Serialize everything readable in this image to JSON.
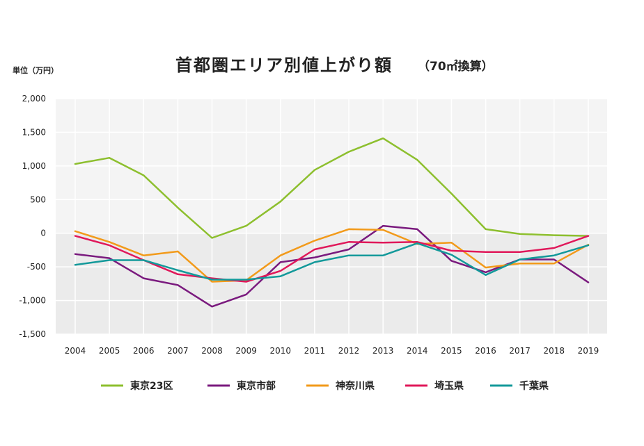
{
  "chart_data": {
    "type": "line",
    "title": "首都圏エリア別値上がり額",
    "subtitle": "（70㎡換算）",
    "unit_label": "単位（万円）",
    "xlabel": "",
    "ylabel": "",
    "ylim": [
      -1500,
      2000
    ],
    "y_ticks": [
      2000,
      1500,
      1000,
      500,
      0,
      -500,
      -1000,
      -1500
    ],
    "y_tick_labels": [
      "2,000",
      "1,500",
      "1,000",
      "500",
      "0",
      "-500",
      "-1,000",
      "-1,500"
    ],
    "categories": [
      "2004",
      "2005",
      "2006",
      "2007",
      "2008",
      "2009",
      "2010",
      "2011",
      "2012",
      "2013",
      "2014",
      "2015",
      "2016",
      "2017",
      "2018",
      "2019"
    ],
    "grid": true,
    "legend_position": "bottom",
    "series": [
      {
        "name": "東京23区",
        "color": "#8dbf2e",
        "values": [
          1030,
          1120,
          860,
          380,
          -70,
          110,
          470,
          940,
          1210,
          1410,
          1090,
          590,
          60,
          -10,
          -30,
          -40
        ]
      },
      {
        "name": "東京市部",
        "color": "#7a1a7e",
        "values": [
          -310,
          -370,
          -670,
          -770,
          -1090,
          -910,
          -430,
          -360,
          -240,
          110,
          60,
          -410,
          -580,
          -390,
          -390,
          -730
        ]
      },
      {
        "name": "神奈川県",
        "color": "#f29a1a",
        "values": [
          30,
          -130,
          -330,
          -270,
          -720,
          -700,
          -330,
          -110,
          60,
          50,
          -160,
          -140,
          -510,
          -450,
          -450,
          -170
        ]
      },
      {
        "name": "埼玉県",
        "color": "#e0185a",
        "values": [
          -40,
          -180,
          -400,
          -610,
          -670,
          -720,
          -560,
          -240,
          -130,
          -140,
          -130,
          -260,
          -280,
          -280,
          -220,
          -40
        ]
      },
      {
        "name": "千葉県",
        "color": "#13999a",
        "values": [
          -470,
          -400,
          -400,
          -550,
          -690,
          -690,
          -640,
          -430,
          -330,
          -330,
          -150,
          -320,
          -620,
          -390,
          -330,
          -180
        ]
      }
    ]
  }
}
